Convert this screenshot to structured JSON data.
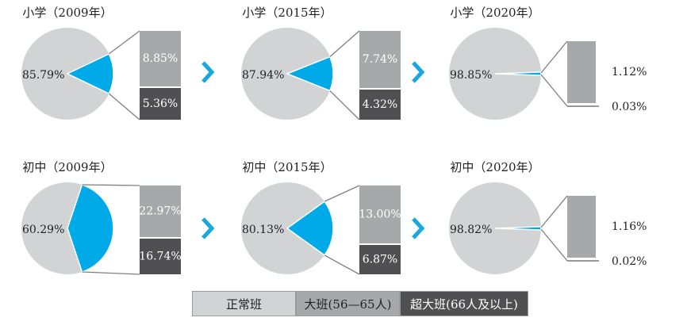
{
  "colors": {
    "normal": "#d2d3d5",
    "large": "#a7a8aa",
    "super": "#505052",
    "highlight": "#00a9e8",
    "arrow": "#1aa7e0",
    "line": "#7f7f7f"
  },
  "chart_data": [
    {
      "type": "pie",
      "title": "小学（2009年）",
      "categories": [
        "正常班",
        "大班(56—65人)",
        "超大班(66人及以上)"
      ],
      "values": [
        85.79,
        8.85,
        5.36
      ],
      "labels": [
        "85.79%",
        "8.85%",
        "5.36%"
      ]
    },
    {
      "type": "pie",
      "title": "小学（2015年）",
      "categories": [
        "正常班",
        "大班(56—65人)",
        "超大班(66人及以上)"
      ],
      "values": [
        87.94,
        7.74,
        4.32
      ],
      "labels": [
        "87.94%",
        "7.74%",
        "4.32%"
      ]
    },
    {
      "type": "pie",
      "title": "小学（2020年）",
      "categories": [
        "正常班",
        "大班(56—65人)",
        "超大班(66人及以上)"
      ],
      "values": [
        98.85,
        1.12,
        0.03
      ],
      "labels": [
        "98.85%",
        "1.12%",
        "0.03%"
      ]
    },
    {
      "type": "pie",
      "title": "初中（2009年）",
      "categories": [
        "正常班",
        "大班(56—65人)",
        "超大班(66人及以上)"
      ],
      "values": [
        60.29,
        22.97,
        16.74
      ],
      "labels": [
        "60.29%",
        "22.97%",
        "16.74%"
      ]
    },
    {
      "type": "pie",
      "title": "初中（2015年）",
      "categories": [
        "正常班",
        "大班(56—65人)",
        "超大班(66人及以上)"
      ],
      "values": [
        80.13,
        13.0,
        6.87
      ],
      "labels": [
        "80.13%",
        "13.00%",
        "6.87%"
      ]
    },
    {
      "type": "pie",
      "title": "初中（2020年）",
      "categories": [
        "正常班",
        "大班(56—65人)",
        "超大班(66人及以上)"
      ],
      "values": [
        98.82,
        1.16,
        0.02
      ],
      "labels": [
        "98.82%",
        "1.16%",
        "0.02%"
      ]
    }
  ],
  "legend": [
    "正常班",
    "大班(56—65人)",
    "超大班(66人及以上)"
  ],
  "arrow_icon": "chevron-right-icon"
}
